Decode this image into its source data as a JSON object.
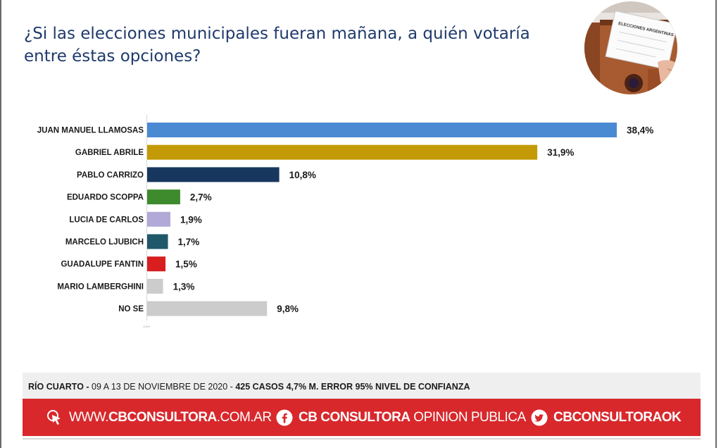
{
  "title": "¿Si las elecciones municipales fueran mañana, a quién votaría entre éstas opciones?",
  "photo": {
    "ballot_label": "ELECCIONES ARGENTINAS"
  },
  "chart_data": {
    "type": "bar",
    "orientation": "horizontal",
    "categories": [
      "JUAN MANUEL LLAMOSAS",
      "GABRIEL ABRILE",
      "PABLO CARRIZO",
      "EDUARDO SCOPPA",
      "LUCIA DE CARLOS",
      "MARCELO LJUBICH",
      "GUADALUPE FANTIN",
      "MARIO LAMBERGHINI",
      "NO SE"
    ],
    "values": [
      38.4,
      31.9,
      10.8,
      2.7,
      1.9,
      1.7,
      1.5,
      1.3,
      9.8
    ],
    "value_labels": [
      "38,4%",
      "31,9%",
      "10,8%",
      "2,7%",
      "1,9%",
      "1,7%",
      "1,5%",
      "1,3%",
      "9,8%"
    ],
    "colors": [
      "#4a8ad2",
      "#c39a06",
      "#17375e",
      "#3d8b2c",
      "#b3a9d8",
      "#1f5868",
      "#d81e1e",
      "#cccccc",
      "#cccccc"
    ],
    "xlim": [
      0,
      38.4
    ],
    "x_tick_label": "0.0%",
    "grid": false,
    "legend": "none"
  },
  "footer": {
    "location": "RÍO CUARTO -",
    "dates": " 09 A 13 DE NOVIEMBRE DE 2020 - ",
    "rest": "425 CASOS  4,7% M. ERROR 95% NIVEL DE CONFIANZA"
  },
  "links": {
    "web_prefix": "WWW.",
    "web_bold": "CBCONSULTORA",
    "web_suffix": ".COM.AR",
    "fb_bold": "CB CONSULTORA",
    "fb_light": " OPINION PUBLICA",
    "tw_bold": "CBCONSULTORAOK"
  },
  "colors": {
    "title": "#1f3a6b",
    "footer_bar": "#d8282c",
    "footer_info_bg": "#efefef"
  }
}
